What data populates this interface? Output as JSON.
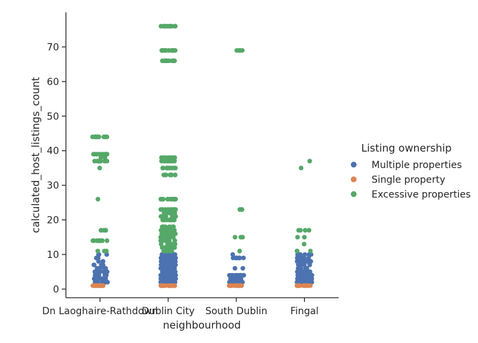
{
  "chart_data": {
    "type": "scatter",
    "subtype": "strip",
    "xlabel": "neighbourhood",
    "ylabel": "calculated_host_listings_count",
    "categories": [
      "Dn Laoghaire-Rathdown",
      "Dublin City",
      "South Dublin",
      "Fingal"
    ],
    "y_ticks": [
      0,
      10,
      20,
      30,
      40,
      50,
      60,
      70
    ],
    "ylim": [
      -2.5,
      80
    ],
    "grid": false,
    "legend": {
      "title": "Listing ownership",
      "placement": "right"
    },
    "series": [
      {
        "name": "Multiple properties",
        "color": "#4c72b0",
        "values_by_category": [
          [
            2,
            2,
            2,
            2,
            2,
            2,
            2,
            2,
            2,
            2,
            2,
            2,
            2,
            3,
            3,
            3,
            3,
            3,
            3,
            3,
            3,
            3,
            3,
            4,
            4,
            4,
            4,
            4,
            4,
            4,
            4,
            4,
            5,
            5,
            5,
            5,
            5,
            5,
            5,
            5,
            6,
            6,
            6,
            6,
            6,
            6,
            7,
            7,
            7,
            7,
            8,
            8,
            8,
            9,
            9,
            10,
            10,
            10,
            10
          ],
          [
            2,
            2,
            2,
            2,
            2,
            2,
            2,
            2,
            2,
            2,
            2,
            2,
            2,
            2,
            2,
            2,
            2,
            2,
            2,
            2,
            2,
            2,
            2,
            3,
            3,
            3,
            3,
            3,
            3,
            3,
            3,
            3,
            3,
            3,
            3,
            3,
            3,
            3,
            3,
            3,
            3,
            3,
            3,
            3,
            3,
            4,
            4,
            4,
            4,
            4,
            4,
            4,
            4,
            4,
            4,
            4,
            4,
            4,
            4,
            4,
            4,
            4,
            4,
            4,
            4,
            4,
            4,
            4,
            5,
            5,
            5,
            5,
            5,
            5,
            5,
            5,
            5,
            5,
            5,
            5,
            5,
            5,
            5,
            5,
            5,
            5,
            5,
            5,
            5,
            5,
            5,
            6,
            6,
            6,
            6,
            6,
            6,
            6,
            6,
            6,
            6,
            6,
            6,
            6,
            6,
            6,
            6,
            6,
            6,
            6,
            6,
            6,
            6,
            6,
            7,
            7,
            7,
            7,
            7,
            7,
            7,
            7,
            7,
            7,
            7,
            7,
            7,
            7,
            7,
            7,
            7,
            7,
            7,
            7,
            7,
            7,
            7,
            8,
            8,
            8,
            8,
            8,
            8,
            8,
            8,
            8,
            8,
            8,
            8,
            8,
            8,
            8,
            8,
            8,
            8,
            8,
            8,
            8,
            8,
            8,
            9,
            9,
            9,
            9,
            9,
            9,
            9,
            9,
            9,
            9,
            9,
            9,
            9,
            9,
            9,
            9,
            9,
            9,
            9,
            9,
            9,
            9,
            9,
            10,
            10,
            10,
            10,
            10,
            10,
            10,
            10,
            10,
            10,
            10,
            10,
            10,
            10,
            10,
            10,
            10,
            10,
            10,
            10,
            10,
            10,
            10
          ],
          [
            2,
            2,
            2,
            2,
            2,
            2,
            2,
            2,
            2,
            2,
            2,
            2,
            3,
            3,
            3,
            3,
            3,
            3,
            3,
            3,
            3,
            3,
            4,
            4,
            4,
            4,
            4,
            4,
            4,
            4,
            4,
            4,
            6,
            6,
            9,
            9,
            9,
            9,
            9,
            9,
            9,
            9,
            9,
            9,
            10
          ],
          [
            2,
            2,
            2,
            2,
            2,
            2,
            2,
            2,
            2,
            2,
            2,
            2,
            2,
            2,
            3,
            3,
            3,
            3,
            3,
            3,
            3,
            3,
            3,
            3,
            3,
            3,
            4,
            4,
            4,
            4,
            4,
            4,
            4,
            4,
            4,
            4,
            4,
            5,
            5,
            5,
            5,
            5,
            5,
            5,
            5,
            5,
            5,
            6,
            6,
            6,
            6,
            6,
            6,
            6,
            7,
            7,
            7,
            7,
            7,
            7,
            7,
            7,
            7,
            8,
            8,
            8,
            8,
            8,
            8,
            8,
            8,
            8,
            8,
            8,
            9,
            9,
            9,
            9,
            9,
            9,
            9,
            9,
            9,
            9,
            10,
            10,
            10,
            10,
            10,
            10,
            10,
            10,
            10,
            10
          ]
        ]
      },
      {
        "name": "Single property",
        "color": "#dd8452",
        "values_by_category": [
          [
            1,
            1,
            1,
            1,
            1,
            1,
            1,
            1,
            1,
            1,
            1,
            1,
            1,
            1,
            1,
            1,
            1,
            1,
            1,
            1
          ],
          [
            1,
            1,
            1,
            1,
            1,
            1,
            1,
            1,
            1,
            1,
            1,
            1,
            1,
            1,
            1,
            1,
            1,
            1,
            1,
            1,
            1,
            1,
            1,
            1,
            1
          ],
          [
            1,
            1,
            1,
            1,
            1,
            1,
            1,
            1,
            1,
            1,
            1,
            1,
            1,
            1,
            1,
            1
          ],
          [
            1,
            1,
            1,
            1,
            1,
            1,
            1,
            1,
            1,
            1,
            1,
            1,
            1,
            1,
            1,
            1,
            1,
            1,
            1
          ]
        ]
      },
      {
        "name": "Excessive properties",
        "color": "#55a868",
        "values_by_category": [
          [
            11,
            11,
            11,
            14,
            14,
            14,
            14,
            14,
            14,
            14,
            14,
            14,
            14,
            14,
            17,
            17,
            17,
            17,
            26,
            35,
            37,
            37,
            37,
            37,
            37,
            37,
            37,
            37,
            37,
            37,
            37,
            37,
            38,
            38,
            39,
            39,
            39,
            39,
            39,
            39,
            39,
            39,
            39,
            39,
            39,
            39,
            44,
            44,
            44,
            44,
            44,
            44,
            44,
            44,
            44,
            44,
            44,
            44
          ],
          [
            11,
            11,
            11,
            11,
            11,
            11,
            11,
            12,
            12,
            12,
            12,
            12,
            12,
            12,
            12,
            13,
            13,
            13,
            13,
            13,
            13,
            13,
            13,
            14,
            14,
            14,
            14,
            14,
            14,
            14,
            14,
            14,
            14,
            15,
            15,
            15,
            15,
            15,
            15,
            15,
            15,
            15,
            15,
            16,
            16,
            16,
            16,
            16,
            16,
            16,
            16,
            16,
            16,
            17,
            17,
            17,
            17,
            17,
            17,
            17,
            17,
            17,
            17,
            17,
            17,
            18,
            18,
            18,
            18,
            18,
            18,
            18,
            18,
            18,
            18,
            18,
            18,
            20,
            20,
            20,
            20,
            20,
            20,
            20,
            20,
            20,
            20,
            20,
            20,
            20,
            20,
            21,
            21,
            21,
            21,
            21,
            21,
            21,
            21,
            21,
            21,
            22,
            22,
            22,
            22,
            22,
            22,
            22,
            22,
            22,
            22,
            22,
            22,
            22,
            22,
            23,
            23,
            23,
            23,
            23,
            23,
            23,
            23,
            23,
            23,
            26,
            26,
            26,
            26,
            26,
            26,
            26,
            26,
            26,
            26,
            26,
            26,
            26,
            26,
            33,
            33,
            33,
            33,
            33,
            33,
            33,
            33,
            33,
            33,
            33,
            33,
            35,
            35,
            35,
            35,
            35,
            35,
            35,
            35,
            35,
            35,
            35,
            35,
            37,
            37,
            37,
            37,
            37,
            37,
            37,
            37,
            37,
            37,
            37,
            37,
            37,
            37,
            38,
            38,
            38,
            38,
            38,
            38,
            38,
            38,
            38,
            38,
            38,
            38,
            66,
            66,
            66,
            66,
            66,
            66,
            66,
            66,
            66,
            66,
            66,
            66,
            69,
            69,
            69,
            69,
            69,
            69,
            69,
            69,
            69,
            69,
            69,
            69,
            76,
            76,
            76,
            76,
            76,
            76,
            76,
            76,
            76,
            76,
            76,
            76
          ],
          [
            11,
            15,
            15,
            15,
            23,
            23,
            23,
            69,
            69,
            69,
            69
          ],
          [
            11,
            11,
            11,
            13,
            15,
            15,
            17,
            17,
            17,
            17,
            35,
            37
          ]
        ]
      }
    ]
  }
}
